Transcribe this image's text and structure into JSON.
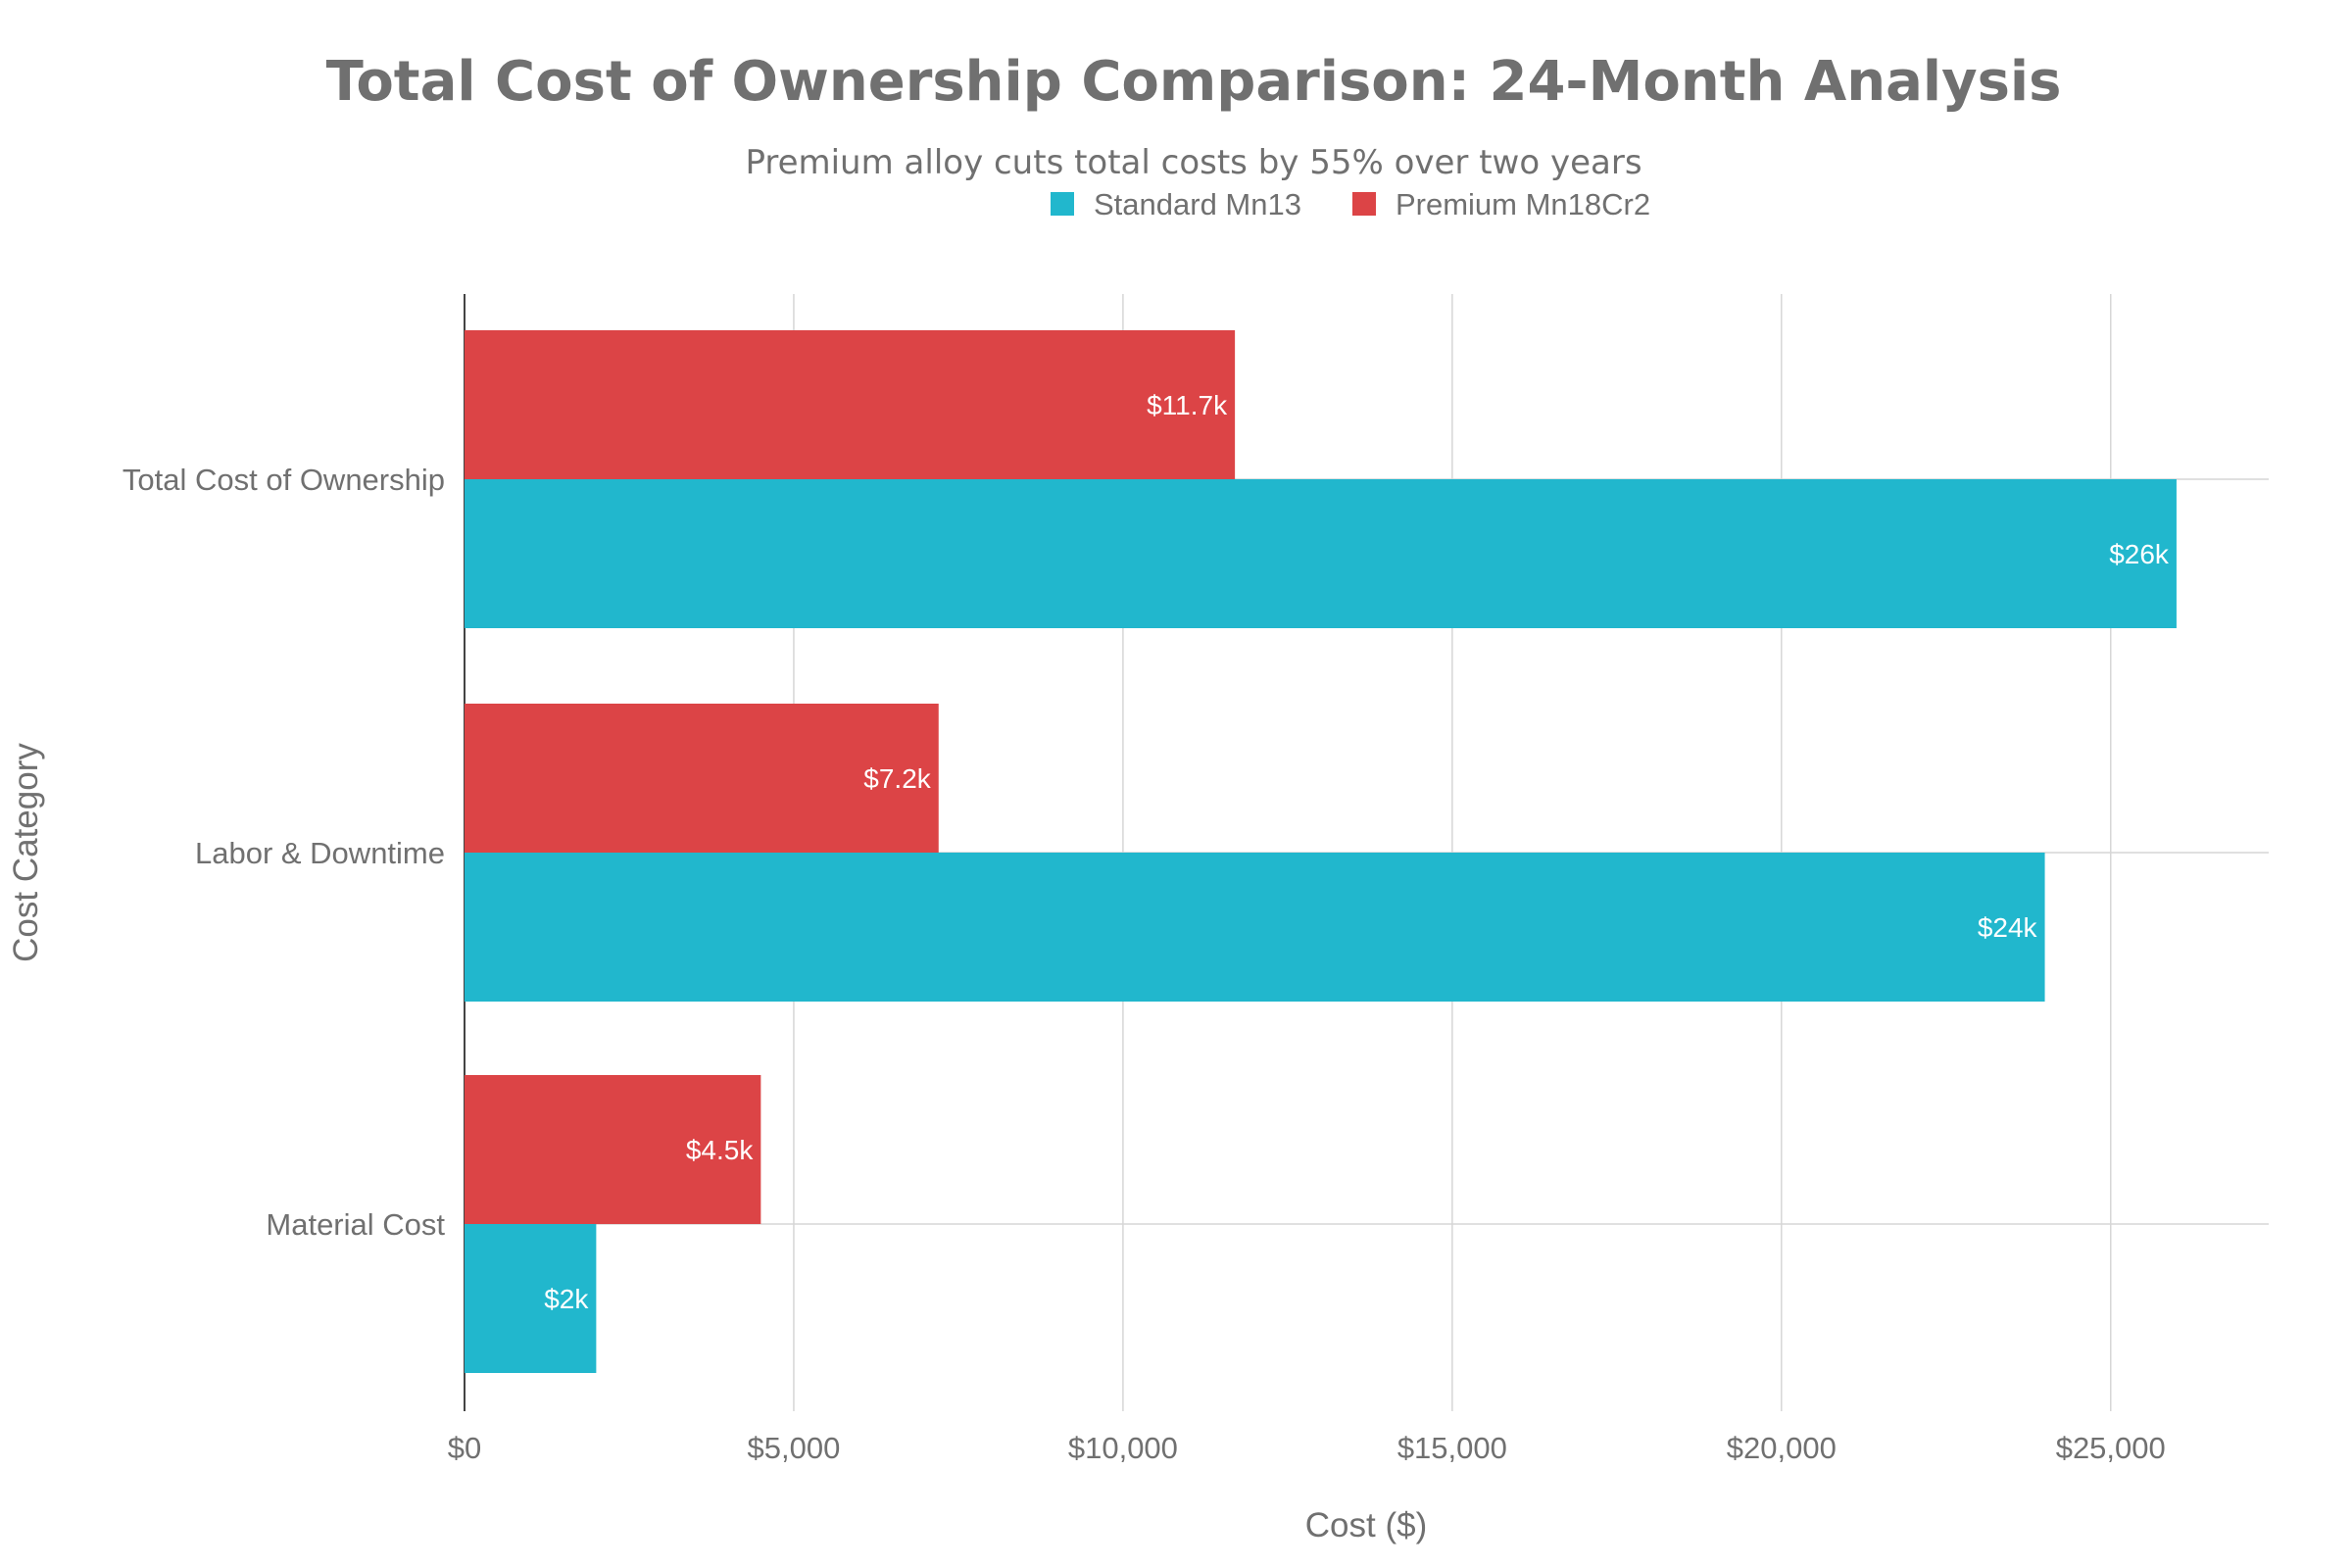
{
  "chart_data": {
    "type": "bar",
    "orientation": "horizontal",
    "title": "Total Cost of Ownership Comparison: 24-Month Analysis",
    "subtitle": "Premium alloy cuts total costs by 55% over two years",
    "xlabel": "Cost ($)",
    "ylabel": "Cost Category",
    "categories": [
      "Total Cost of Ownership",
      "Labor & Downtime",
      "Material Cost"
    ],
    "series": [
      {
        "name": "Standard Mn13",
        "color": "#21b7cd",
        "values": [
          26000,
          24000,
          2000
        ],
        "labels": [
          "$26k",
          "$24k",
          "$2k"
        ]
      },
      {
        "name": "Premium Mn18Cr2",
        "color": "#dc4446",
        "values": [
          11700,
          7200,
          4500
        ],
        "labels": [
          "$11.7k",
          "$7.2k",
          "$4.5k"
        ]
      }
    ],
    "xlim": [
      0,
      27400
    ],
    "xticks": [
      0,
      5000,
      10000,
      15000,
      20000,
      25000
    ],
    "xtick_labels": [
      "$0",
      "$5,000",
      "$10,000",
      "$15,000",
      "$20,000",
      "$25,000"
    ],
    "grid": true,
    "legend_placement": "top-center"
  }
}
